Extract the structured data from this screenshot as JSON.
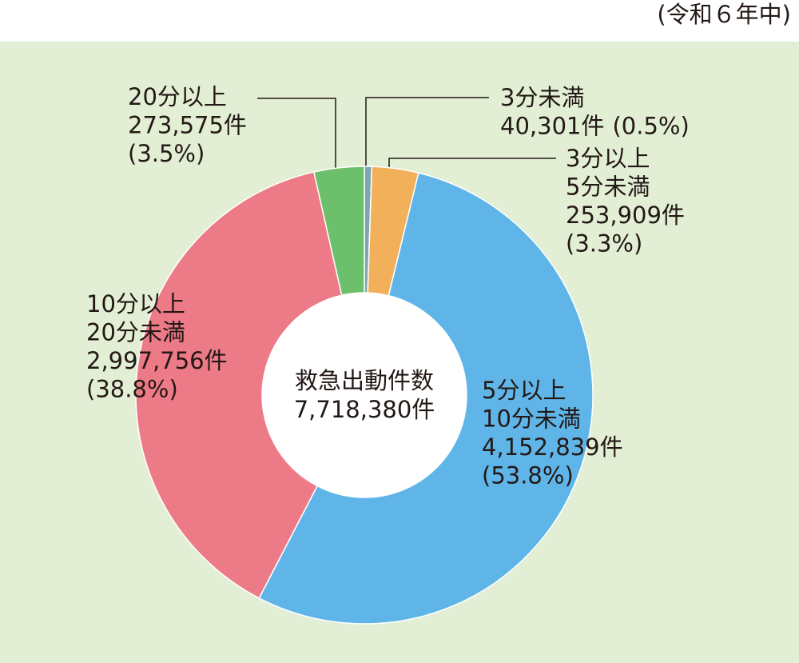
{
  "chart_data": {
    "type": "donut",
    "subtitle": "(令和６年中)",
    "center_title": "救急出動件数",
    "total": {
      "value": 7718380,
      "label": "7,718,380件"
    },
    "categories": [
      [
        "3分未満"
      ],
      [
        "3分以上",
        "5分未満"
      ],
      [
        "5分以上",
        "10分未満"
      ],
      [
        "10分以上",
        "20分未満"
      ],
      [
        "20分以上"
      ]
    ],
    "values": [
      40301,
      253909,
      4152839,
      2997756,
      273575
    ],
    "value_labels": [
      "40,301件",
      "253,909件",
      "4,152,839件",
      "2,997,756件",
      "273,575件"
    ],
    "percent_labels": [
      "(0.5%)",
      "(3.3%)",
      "(53.8%)",
      "(38.8%)",
      "(3.5%)"
    ],
    "colors": [
      "#7fa6b5",
      "#f3b05b",
      "#5fb5e8",
      "#ed7a87",
      "#6cbf6b"
    ]
  }
}
